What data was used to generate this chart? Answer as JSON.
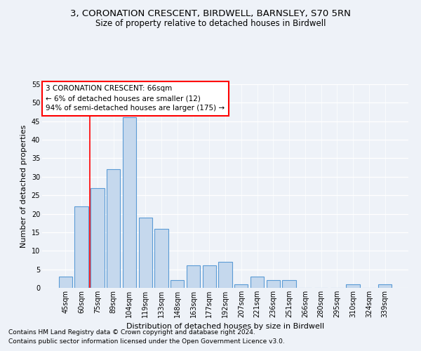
{
  "title1": "3, CORONATION CRESCENT, BIRDWELL, BARNSLEY, S70 5RN",
  "title2": "Size of property relative to detached houses in Birdwell",
  "xlabel": "Distribution of detached houses by size in Birdwell",
  "ylabel": "Number of detached properties",
  "categories": [
    "45sqm",
    "60sqm",
    "75sqm",
    "89sqm",
    "104sqm",
    "119sqm",
    "133sqm",
    "148sqm",
    "163sqm",
    "177sqm",
    "192sqm",
    "207sqm",
    "221sqm",
    "236sqm",
    "251sqm",
    "266sqm",
    "280sqm",
    "295sqm",
    "310sqm",
    "324sqm",
    "339sqm"
  ],
  "values": [
    3,
    22,
    27,
    32,
    46,
    19,
    16,
    2,
    6,
    6,
    7,
    1,
    3,
    2,
    2,
    0,
    0,
    0,
    1,
    0,
    1
  ],
  "bar_color": "#c5d8ed",
  "bar_edge_color": "#5b9bd5",
  "bar_edge_width": 0.8,
  "red_line_x": 1.5,
  "annotation_title": "3 CORONATION CRESCENT: 66sqm",
  "annotation_line1": "← 6% of detached houses are smaller (12)",
  "annotation_line2": "94% of semi-detached houses are larger (175) →",
  "annotation_box_color": "white",
  "annotation_box_edge_color": "red",
  "red_line_color": "red",
  "ylim": [
    0,
    55
  ],
  "yticks": [
    0,
    5,
    10,
    15,
    20,
    25,
    30,
    35,
    40,
    45,
    50,
    55
  ],
  "footer1": "Contains HM Land Registry data © Crown copyright and database right 2024.",
  "footer2": "Contains public sector information licensed under the Open Government Licence v3.0.",
  "bg_color": "#eef2f8",
  "plot_bg_color": "#eef2f8",
  "title1_fontsize": 9.5,
  "title2_fontsize": 8.5,
  "xlabel_fontsize": 8,
  "ylabel_fontsize": 8,
  "tick_fontsize": 7,
  "footer_fontsize": 6.5,
  "annotation_fontsize": 7.5
}
